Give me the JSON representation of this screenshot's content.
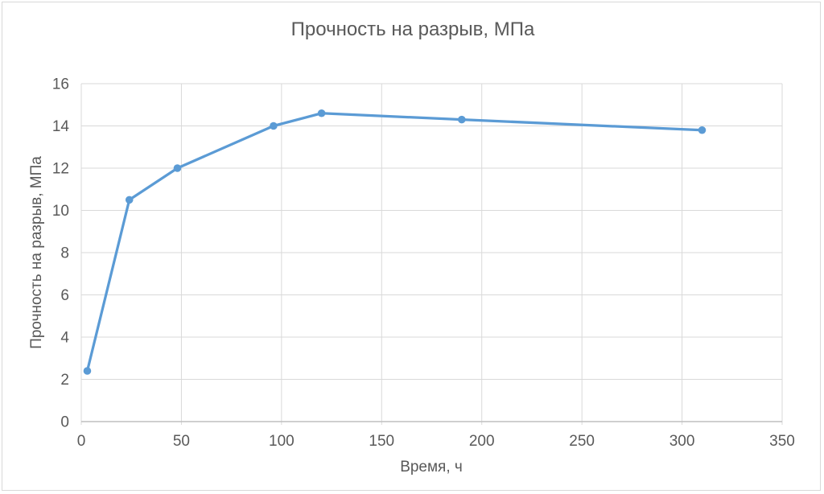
{
  "chart_data": {
    "type": "line",
    "title": "Прочность на разрыв, МПа",
    "xlabel": "Время, ч",
    "ylabel": "Прочность на разрыв, МПа",
    "x": [
      3,
      24,
      48,
      96,
      120,
      190,
      310
    ],
    "y": [
      2.4,
      10.5,
      12,
      14,
      14.6,
      14.3,
      13.8
    ],
    "xlim": [
      0,
      350
    ],
    "ylim": [
      0,
      16
    ],
    "x_ticks": [
      0,
      50,
      100,
      150,
      200,
      250,
      300,
      350
    ],
    "y_ticks": [
      0,
      2,
      4,
      6,
      8,
      10,
      12,
      14,
      16
    ],
    "grid": true,
    "legend": "none",
    "colors": {
      "series": "#5B9BD5",
      "text": "#595959",
      "gridline": "#D9D9D9",
      "axis_line": "#BFBFBF",
      "frame": "#D9D9D9",
      "background": "#FFFFFF"
    }
  }
}
